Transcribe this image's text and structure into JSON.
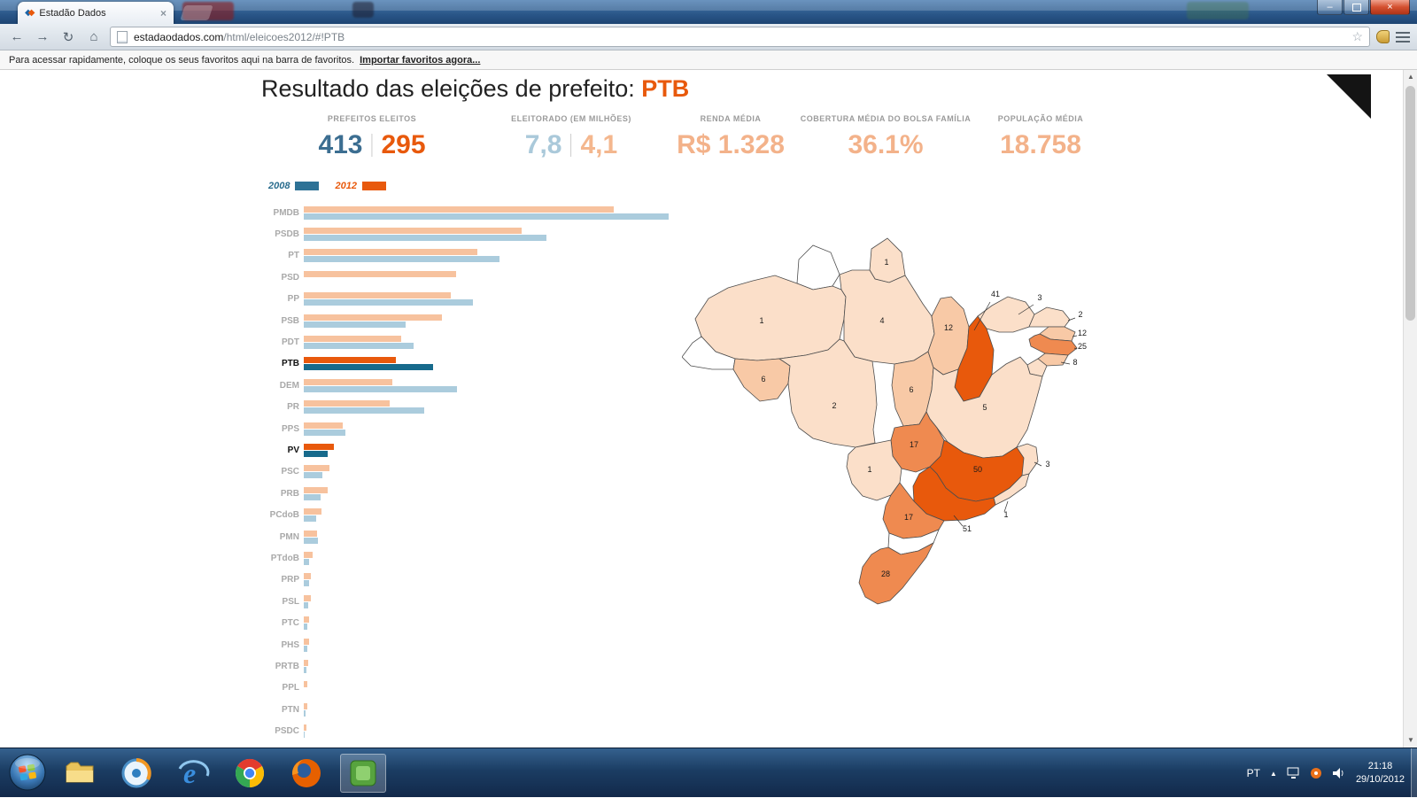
{
  "browser": {
    "tab": {
      "title": "Estadão Dados"
    },
    "nav": {
      "url_domain": "estadaodados.com",
      "url_path": "/html/eleicoes2012/#!PTB"
    },
    "infobar": {
      "text": "Para acessar rapidamente, coloque os seus favoritos aqui na barra de favoritos.",
      "link": "Importar favoritos agora..."
    }
  },
  "page": {
    "title": {
      "prefix": "Resultado das eleições de prefeito: ",
      "party": "PTB"
    },
    "stats": [
      {
        "label": "PREFEITOS ELEITOS",
        "v2008": "413",
        "v2012": "295"
      },
      {
        "label": "ELEITORADO (EM MILHÕES)",
        "v2008": "7,8",
        "v2012": "4,1"
      },
      {
        "label": "RENDA MÉDIA",
        "value": "R$ 1.328"
      },
      {
        "label": "COBERTURA MÉDIA DO BOLSA FAMÍLIA",
        "value": "36.1%"
      },
      {
        "label": "POPULAÇÃO MÉDIA",
        "value": "18.758"
      }
    ],
    "legend": [
      {
        "label": "2008",
        "color": "#2e7296"
      },
      {
        "label": "2012",
        "color": "#e8590c"
      }
    ]
  },
  "chart_data": {
    "type": "bar",
    "orientation": "horizontal",
    "title": "Prefeitos eleitos por partido, 2008 vs 2012",
    "categories": [
      "PMDB",
      "PSDB",
      "PT",
      "PSD",
      "PP",
      "PSB",
      "PDT",
      "PTB",
      "DEM",
      "PR",
      "PPS",
      "PV",
      "PSC",
      "PRB",
      "PCdoB",
      "PMN",
      "PTdoB",
      "PRP",
      "PSL",
      "PTC",
      "PHS",
      "PRTB",
      "PPL",
      "PTN",
      "PSDC"
    ],
    "series": [
      {
        "name": "2008",
        "color": "#abccdd",
        "highlight_color": "#176a8c",
        "values": [
          1165,
          775,
          625,
          0,
          540,
          325,
          350,
          413,
          490,
          385,
          132,
          75,
          60,
          54,
          41,
          44,
          18,
          16,
          14,
          12,
          12,
          8,
          0,
          6,
          4
        ]
      },
      {
        "name": "2012",
        "color": "#f7c29e",
        "highlight_color": "#e8590c",
        "values": [
          990,
          695,
          555,
          487,
          470,
          440,
          310,
          295,
          283,
          274,
          125,
          97,
          83,
          77,
          57,
          43,
          28,
          23,
          22,
          17,
          18,
          13,
          11,
          10,
          8
        ]
      }
    ],
    "highlighted_categories": [
      "PTB",
      "PV"
    ]
  },
  "map_data": {
    "type": "choropleth",
    "subject": "Prefeitos eleitos do PTB em 2012 por estado",
    "values": {
      "AP": 1,
      "AM": 1,
      "PA": 4,
      "MA": 12,
      "PI": 41,
      "CE": 3,
      "RN": 2,
      "PB": 12,
      "PE": 25,
      "AL": 8,
      "RO": 6,
      "TO": 6,
      "MT": 2,
      "BA": 5,
      "GO": 17,
      "MG": 50,
      "ES": 3,
      "MS": 1,
      "RJ": 1,
      "SP": 51,
      "PR": 17,
      "RS": 28
    },
    "color_stops": {
      "none": "#ffffff",
      "low": "#fbdfc9",
      "mid": "#f8c9a6",
      "high": "#ef8a50",
      "max": "#e8590c"
    }
  },
  "taskbar": {
    "tray": {
      "language": "PT",
      "time": "21:18",
      "date": "29/10/2012"
    },
    "apps": [
      "start",
      "explorer",
      "media-player",
      "internet-explorer",
      "chrome",
      "firefox",
      "screenshot-tool"
    ]
  }
}
